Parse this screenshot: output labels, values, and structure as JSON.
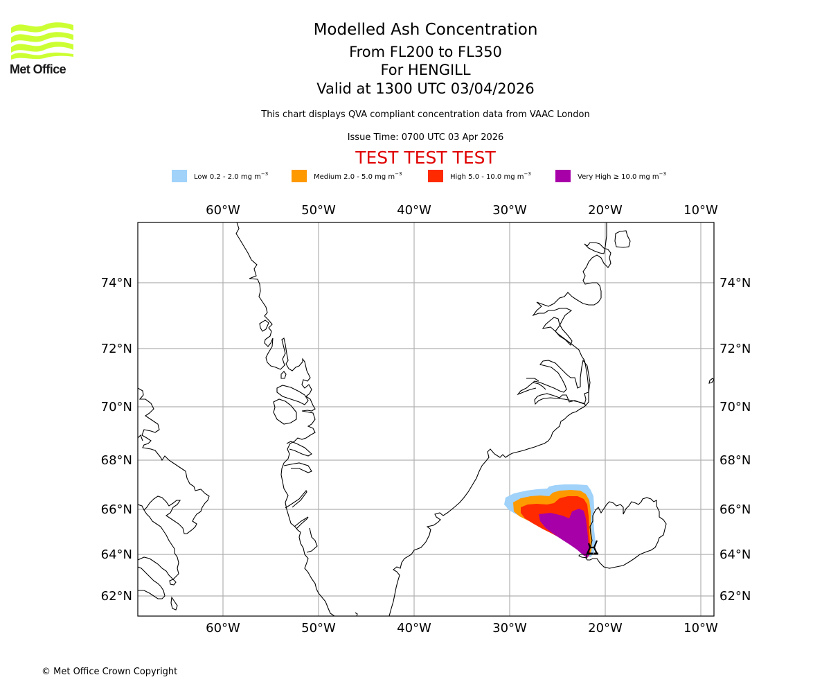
{
  "header": {
    "logo_text": "Met Office",
    "title": "Modelled Ash Concentration",
    "subtitle_levels": "From FL200 to FL350",
    "subtitle_volcano": "For HENGILL",
    "subtitle_valid": "Valid at 1300 UTC 03/04/2026",
    "description": "This chart displays QVA compliant concentration data from VAAC London",
    "issue_time": "Issue Time: 0700 UTC 03 Apr 2026",
    "test_banner": "TEST TEST TEST"
  },
  "legend": [
    {
      "label": "Low 0.2 - 2.0 mg m",
      "unit_sup": "−3",
      "color": "#a0d2fa"
    },
    {
      "label": "Medium 2.0 - 5.0 mg m",
      "unit_sup": "−3",
      "color": "#ff9900"
    },
    {
      "label": "High 5.0 - 10.0 mg m",
      "unit_sup": "−3",
      "color": "#ff2a00"
    },
    {
      "label": "Very High ≥ 10.0 mg m",
      "unit_sup": "−3",
      "color": "#a800a8"
    }
  ],
  "colors": {
    "title_test": "#e00000",
    "logo_green": "#ccff33",
    "grid": "#b0b0b0"
  },
  "chart_data": {
    "type": "heatmap",
    "title": "Modelled Ash Concentration",
    "projection": "map",
    "lon_range": [
      -69,
      -8.6
    ],
    "lat_range": [
      61.3,
      75.9
    ],
    "x_ticks": [
      "60°W",
      "50°W",
      "40°W",
      "30°W",
      "20°W",
      "10°W"
    ],
    "x_tick_values": [
      -60,
      -50,
      -40,
      -30,
      -20,
      -10
    ],
    "y_ticks": [
      "74°N",
      "72°N",
      "70°N",
      "68°N",
      "66°N",
      "64°N",
      "62°N"
    ],
    "y_tick_values": [
      74,
      72,
      70,
      68,
      66,
      64,
      62
    ],
    "grid": true,
    "source_volcano": {
      "name": "HENGILL",
      "lat": 64.08,
      "lon": -21.3
    },
    "ash_levels": [
      {
        "name": "Low",
        "range_mg_m3": [
          0.2,
          2.0
        ],
        "extent": "approx. 29.5°W–21.0°W, 64.0°N–66.9°N"
      },
      {
        "name": "Medium",
        "range_mg_m3": [
          2.0,
          5.0
        ],
        "extent": "approx. 28.8°W–21.3°W, 64.0°N–66.6°N"
      },
      {
        "name": "High",
        "range_mg_m3": [
          5.0,
          10.0
        ],
        "extent": "approx. 28.0°W–21.5°W, 64.0°N–66.4°N"
      },
      {
        "name": "Very High",
        "range_mg_m3": [
          10.0,
          null
        ],
        "extent": "approx. 27.0°W–21.5°W, 64.0°N–66.3°N"
      }
    ]
  },
  "footer": {
    "copyright": "© Met Office Crown Copyright"
  }
}
